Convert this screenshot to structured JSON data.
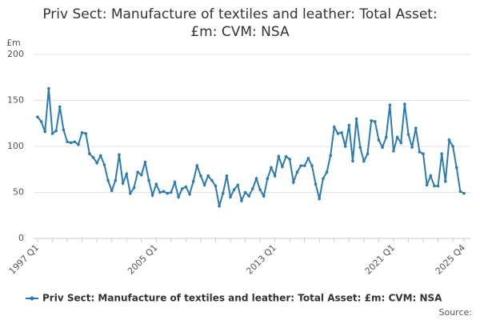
{
  "chart_data": {
    "type": "line",
    "title": "Priv Sect: Manufacture of textiles and leather: Total Asset: £m: CVM: NSA",
    "y_unit": "£m",
    "source": "Source:",
    "categories": [
      "1997 Q1",
      null,
      null,
      null,
      null,
      null,
      null,
      null,
      null,
      null,
      null,
      null,
      null,
      null,
      null,
      null,
      null,
      null,
      null,
      null,
      null,
      null,
      null,
      null,
      null,
      null,
      null,
      null,
      null,
      null,
      null,
      null,
      "2005 Q1",
      null,
      null,
      null,
      null,
      null,
      null,
      null,
      null,
      null,
      null,
      null,
      null,
      null,
      null,
      null,
      null,
      null,
      null,
      null,
      null,
      null,
      null,
      null,
      null,
      null,
      null,
      null,
      null,
      null,
      null,
      null,
      "2013 Q1",
      null,
      null,
      null,
      null,
      null,
      null,
      null,
      null,
      null,
      null,
      null,
      null,
      null,
      null,
      null,
      null,
      null,
      null,
      null,
      null,
      null,
      null,
      null,
      null,
      null,
      null,
      null,
      null,
      null,
      null,
      null,
      "2021 Q1",
      null,
      null,
      null,
      null,
      null,
      null,
      null,
      null,
      null,
      null,
      null,
      null,
      null,
      null,
      null,
      null,
      null,
      null,
      "2025 Q4"
    ],
    "series": [
      {
        "name": "Priv Sect: Manufacture of textiles and leather: Total Asset: £m: CVM: NSA",
        "color": "#2b7bb3",
        "values": [
          132,
          127,
          116,
          163,
          114,
          117,
          143,
          118,
          105,
          104,
          105,
          102,
          115,
          114,
          92,
          88,
          82,
          90,
          80,
          63,
          52,
          63,
          91,
          60,
          70,
          49,
          55,
          72,
          69,
          83,
          63,
          47,
          59,
          50,
          51,
          49,
          50,
          61,
          45,
          54,
          56,
          48,
          62,
          79,
          68,
          58,
          68,
          63,
          57,
          35,
          49,
          68,
          45,
          53,
          58,
          41,
          50,
          46,
          54,
          65,
          53,
          46,
          65,
          77,
          68,
          89,
          78,
          89,
          86,
          61,
          72,
          79,
          79,
          87,
          79,
          59,
          43,
          65,
          72,
          90,
          121,
          114,
          115,
          100,
          123,
          84,
          130,
          99,
          84,
          92,
          128,
          127,
          107,
          99,
          110,
          145,
          95,
          110,
          104,
          146,
          113,
          99,
          120,
          94,
          92,
          58,
          68,
          57,
          57,
          92,
          62,
          107,
          100,
          77,
          51,
          49
        ]
      }
    ],
    "ylim": [
      0,
      200
    ],
    "yticks": [
      0,
      50,
      100,
      150,
      200
    ],
    "grid": true
  }
}
